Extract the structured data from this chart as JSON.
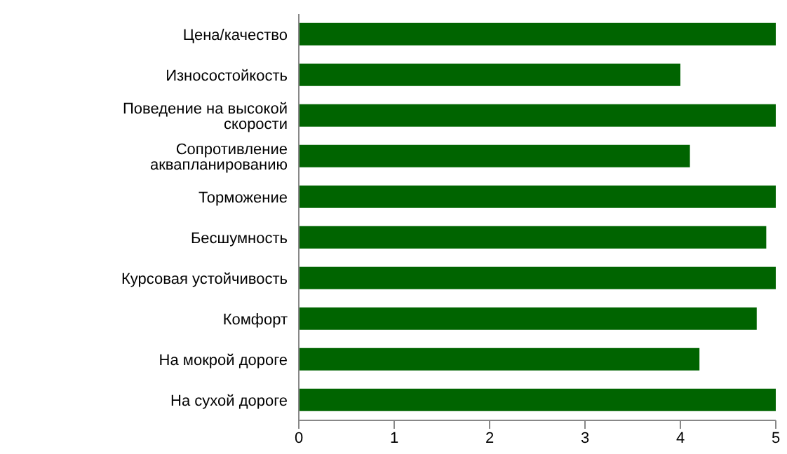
{
  "chart_data": {
    "type": "bar",
    "orientation": "horizontal",
    "categories": [
      "Цена/качество",
      "Износостойкость",
      "Поведение на высокой скорости",
      "Сопротивление аквапланированию",
      "Торможение",
      "Бесшумность",
      "Курсовая устойчивость",
      "Комфорт",
      "На мокрой дороге",
      "На сухой дороге"
    ],
    "series": [
      {
        "color": "#006400",
        "values": [
          5,
          4,
          5,
          4.1,
          5,
          4.9,
          5,
          4.8,
          4.2,
          5
        ]
      }
    ],
    "xlim": [
      0,
      5
    ],
    "xticks": [
      0,
      1,
      2,
      3,
      4,
      5
    ],
    "grid": false,
    "legend": false
  }
}
